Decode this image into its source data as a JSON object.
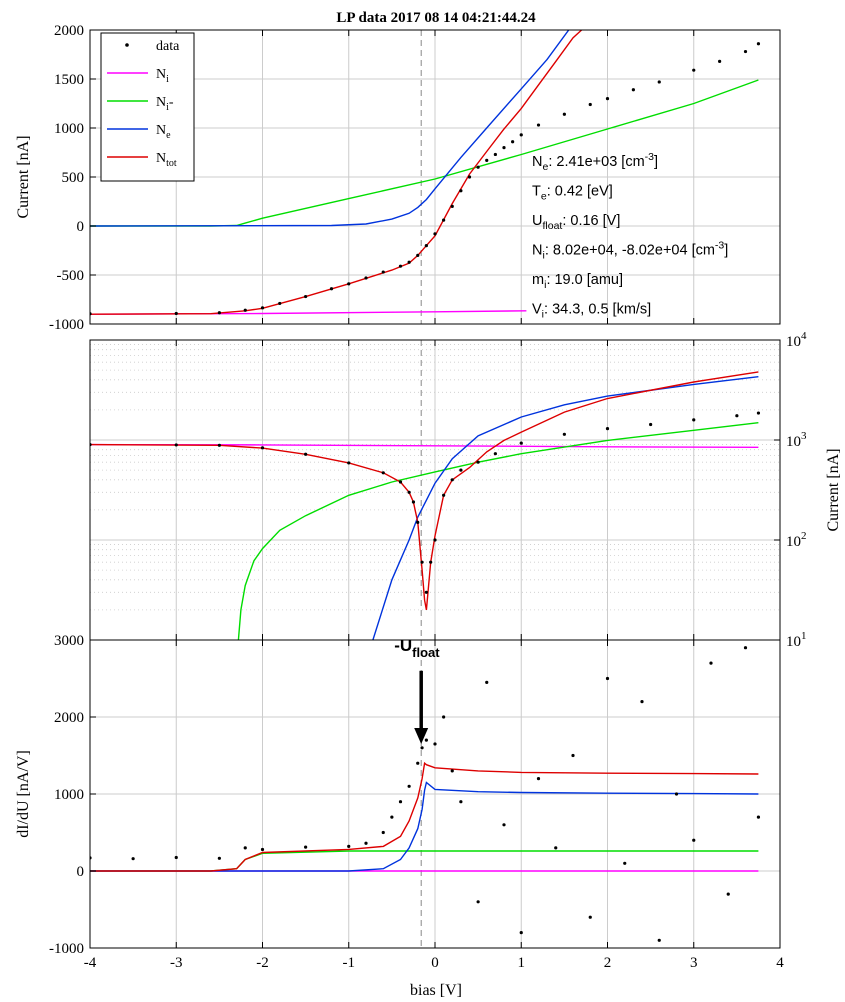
{
  "figure": {
    "title": "LP data 2017 08 14 04:21:44.24",
    "xlabel": "bias [V]",
    "xticks": [
      -4,
      -3,
      -2,
      -1,
      0,
      1,
      2,
      3,
      4
    ],
    "ufloat_line_x": -0.16,
    "colors": {
      "data": "#000000",
      "Ni": "#ff00ff",
      "Ni_minus": "#00dd00",
      "Ne": "#0033dd",
      "Ntot": "#dd0000",
      "grid": "#cccccc",
      "vline": "#888888"
    }
  },
  "legend": {
    "placement": "top-left",
    "entries": [
      {
        "key": "data",
        "main": "data",
        "sub": "",
        "suffix": ""
      },
      {
        "key": "Ni",
        "main": "N",
        "sub": "i",
        "suffix": ""
      },
      {
        "key": "Ni_minus",
        "main": "N",
        "sub": "i",
        "suffix": "-"
      },
      {
        "key": "Ne",
        "main": "N",
        "sub": "e",
        "suffix": ""
      },
      {
        "key": "Ntot",
        "main": "N",
        "sub": "tot",
        "suffix": ""
      }
    ]
  },
  "fit_params": [
    {
      "main": "N",
      "sub": "e",
      "text": ": 2.41e+03 [cm",
      "sup": "-3",
      "tail": "]"
    },
    {
      "main": "T",
      "sub": "e",
      "text": ": 0.42 [eV]",
      "sup": "",
      "tail": ""
    },
    {
      "main": "U",
      "sub": "float",
      "text": ": 0.16 [V]",
      "sup": "",
      "tail": ""
    },
    {
      "main": "N",
      "sub": "i",
      "text": ": 8.02e+04, -8.02e+04 [cm",
      "sup": "-3",
      "tail": "]"
    },
    {
      "main": "m",
      "sub": "i",
      "text": ": 19.0 [amu]",
      "sup": "",
      "tail": ""
    },
    {
      "main": "V",
      "sub": "i",
      "text": ": 34.3, 0.5 [km/s]",
      "sup": "",
      "tail": ""
    }
  ],
  "annotation": {
    "main": "-U",
    "sub": "float",
    "x": -0.16,
    "y_tip": 1650,
    "y_tail": 2600
  },
  "chart_data": [
    {
      "type": "line",
      "ylabel": "Current [nA]",
      "ylim": [
        -1000,
        2000
      ],
      "yticks": [
        -1000,
        -500,
        0,
        500,
        1000,
        1500,
        2000
      ],
      "grid": true,
      "series": [
        {
          "key": "Ni",
          "name": "N_i",
          "x": [
            -4,
            -2,
            0,
            1.06
          ],
          "y": [
            -900,
            -893,
            -875,
            -865
          ]
        },
        {
          "key": "Ni_minus",
          "name": "N_i-",
          "x": [
            -4,
            -2.6,
            -2.3,
            -2.2,
            -2,
            -1,
            0,
            1,
            2,
            3,
            3.75
          ],
          "y": [
            0,
            0,
            5,
            30,
            80,
            280,
            480,
            730,
            990,
            1250,
            1490
          ]
        },
        {
          "key": "Ne",
          "name": "N_e",
          "x": [
            -4,
            -1.2,
            -0.8,
            -0.5,
            -0.3,
            -0.2,
            -0.1,
            0,
            0.3,
            0.6,
            1.0,
            1.3,
            1.55
          ],
          "y": [
            0,
            5,
            20,
            70,
            130,
            190,
            270,
            380,
            700,
            1000,
            1400,
            1700,
            2000
          ]
        },
        {
          "key": "Ntot",
          "name": "N_tot",
          "x": [
            -4,
            -2.6,
            -2.2,
            -2.0,
            -1.5,
            -1.0,
            -0.5,
            -0.3,
            -0.2,
            -0.1,
            0,
            0.2,
            0.4,
            0.6,
            0.8,
            1.0,
            1.2,
            1.4,
            1.6,
            1.7
          ],
          "y": [
            -900,
            -895,
            -865,
            -840,
            -720,
            -590,
            -450,
            -380,
            -300,
            -200,
            -100,
            230,
            530,
            760,
            990,
            1200,
            1440,
            1680,
            1920,
            2000
          ]
        },
        {
          "key": "data",
          "name": "data",
          "x": [
            -4,
            -3,
            -2.5,
            -2.2,
            -2,
            -1.8,
            -1.5,
            -1.2,
            -1,
            -0.8,
            -0.6,
            -0.4,
            -0.3,
            -0.2,
            -0.1,
            0,
            0.1,
            0.2,
            0.3,
            0.4,
            0.5,
            0.6,
            0.7,
            0.8,
            0.9,
            1.0,
            1.2,
            1.5,
            1.8,
            2.0,
            2.3,
            2.6,
            3.0,
            3.3,
            3.6,
            3.75
          ],
          "y": [
            -895,
            -893,
            -885,
            -860,
            -835,
            -790,
            -720,
            -640,
            -590,
            -530,
            -470,
            -410,
            -370,
            -300,
            -200,
            -80,
            60,
            200,
            360,
            500,
            600,
            670,
            730,
            800,
            860,
            930,
            1030,
            1140,
            1240,
            1300,
            1390,
            1470,
            1590,
            1680,
            1780,
            1860
          ]
        }
      ]
    },
    {
      "type": "line",
      "ylabel": "Current [nA]",
      "yscale": "log",
      "ylim": [
        10,
        10000
      ],
      "yticks": [
        10,
        100,
        1000,
        10000
      ],
      "ytick_labels": [
        {
          "b": "10",
          "e": "1"
        },
        {
          "b": "10",
          "e": "2"
        },
        {
          "b": "10",
          "e": "3"
        },
        {
          "b": "10",
          "e": "4"
        }
      ],
      "grid": true,
      "series": [
        {
          "key": "Ni",
          "name": "N_i",
          "x": [
            -4,
            -2,
            0,
            2,
            3.75
          ],
          "y": [
            900,
            893,
            875,
            855,
            845
          ]
        },
        {
          "key": "Ni_minus",
          "name": "N_i-",
          "x": [
            -2.28,
            -2.25,
            -2.2,
            -2.1,
            -2.0,
            -1.8,
            -1.5,
            -1.0,
            -0.5,
            0,
            0.5,
            1,
            2,
            3,
            3.75
          ],
          "y": [
            10,
            20,
            35,
            62,
            82,
            125,
            175,
            280,
            380,
            480,
            600,
            730,
            990,
            1250,
            1490
          ]
        },
        {
          "key": "Ne",
          "name": "N_e",
          "x": [
            -0.72,
            -0.5,
            -0.3,
            -0.2,
            -0.1,
            0,
            0.2,
            0.5,
            1.0,
            1.5,
            2.0,
            3.0,
            3.75
          ],
          "y": [
            10,
            40,
            100,
            170,
            250,
            370,
            650,
            1100,
            1700,
            2250,
            2750,
            3600,
            4300
          ]
        },
        {
          "key": "Ntot",
          "name": "N_tot",
          "x": [
            -4,
            -2.5,
            -2,
            -1.5,
            -1.0,
            -0.6,
            -0.4,
            -0.3,
            -0.25,
            -0.2,
            -0.15,
            -0.12,
            -0.1,
            -0.05,
            0,
            0.1,
            0.2,
            0.4,
            0.6,
            0.8,
            1.0,
            1.5,
            2.0,
            3.0,
            3.75
          ],
          "y": [
            900,
            885,
            830,
            720,
            590,
            470,
            380,
            300,
            240,
            150,
            50,
            25,
            20,
            60,
            110,
            280,
            400,
            530,
            760,
            990,
            1200,
            1900,
            2600,
            3800,
            4800
          ]
        },
        {
          "key": "data",
          "name": "data",
          "x": [
            -4,
            -3,
            -2.5,
            -2,
            -1.5,
            -1.0,
            -0.6,
            -0.4,
            -0.3,
            -0.25,
            -0.2,
            -0.15,
            -0.1,
            -0.05,
            0,
            0.1,
            0.2,
            0.3,
            0.5,
            0.7,
            1.0,
            1.5,
            2.0,
            2.5,
            3.0,
            3.5,
            3.75
          ],
          "y": [
            900,
            893,
            885,
            835,
            720,
            590,
            470,
            380,
            300,
            240,
            150,
            60,
            30,
            60,
            100,
            280,
            400,
            500,
            600,
            730,
            930,
            1140,
            1300,
            1430,
            1590,
            1750,
            1860
          ]
        }
      ]
    },
    {
      "type": "line",
      "ylabel": "dI/dU [nA/V]",
      "ylim": [
        -1000,
        3000
      ],
      "yticks": [
        -1000,
        0,
        1000,
        2000,
        3000
      ],
      "grid": true,
      "series": [
        {
          "key": "Ni",
          "name": "N_i",
          "x": [
            -4,
            3.75
          ],
          "y": [
            0,
            0
          ]
        },
        {
          "key": "Ni_minus",
          "name": "N_i-",
          "x": [
            -4,
            -2.6,
            -2.3,
            -2.2,
            -2.0,
            -1.0,
            3.75
          ],
          "y": [
            0,
            0,
            30,
            150,
            230,
            260,
            260
          ]
        },
        {
          "key": "Ne",
          "name": "N_e",
          "x": [
            -4,
            -1.0,
            -0.6,
            -0.4,
            -0.3,
            -0.2,
            -0.15,
            -0.12,
            -0.1,
            0,
            0.5,
            1,
            2,
            3,
            3.75
          ],
          "y": [
            0,
            0,
            30,
            150,
            300,
            550,
            800,
            1050,
            1150,
            1060,
            1030,
            1020,
            1010,
            1005,
            1000
          ]
        },
        {
          "key": "Ntot",
          "name": "N_tot",
          "x": [
            -4,
            -2.6,
            -2.3,
            -2.2,
            -2.0,
            -1.0,
            -0.6,
            -0.4,
            -0.3,
            -0.2,
            -0.15,
            -0.12,
            -0.1,
            0,
            0.5,
            1,
            2,
            3,
            3.75
          ],
          "y": [
            0,
            0,
            30,
            150,
            240,
            280,
            320,
            450,
            650,
            950,
            1200,
            1400,
            1380,
            1340,
            1300,
            1280,
            1270,
            1265,
            1260
          ]
        },
        {
          "key": "data",
          "name": "data",
          "x": [
            -4,
            -3.5,
            -3,
            -2.5,
            -2.2,
            -2,
            -1.5,
            -1,
            -0.8,
            -0.6,
            -0.5,
            -0.4,
            -0.3,
            -0.2,
            -0.15,
            -0.1,
            0,
            0.1,
            0.2,
            0.3,
            0.5,
            0.6,
            0.8,
            1.0,
            1.2,
            1.4,
            1.6,
            1.8,
            2.0,
            2.2,
            2.4,
            2.6,
            2.8,
            3.0,
            3.2,
            3.4,
            3.6,
            3.75
          ],
          "y": [
            170,
            160,
            175,
            165,
            300,
            280,
            310,
            320,
            360,
            500,
            700,
            900,
            1100,
            1400,
            1600,
            1700,
            1650,
            2000,
            1300,
            900,
            -400,
            2450,
            600,
            -800,
            1200,
            300,
            1500,
            -600,
            2500,
            100,
            2200,
            -900,
            1000,
            400,
            2700,
            -300,
            2900,
            700
          ]
        }
      ]
    }
  ]
}
